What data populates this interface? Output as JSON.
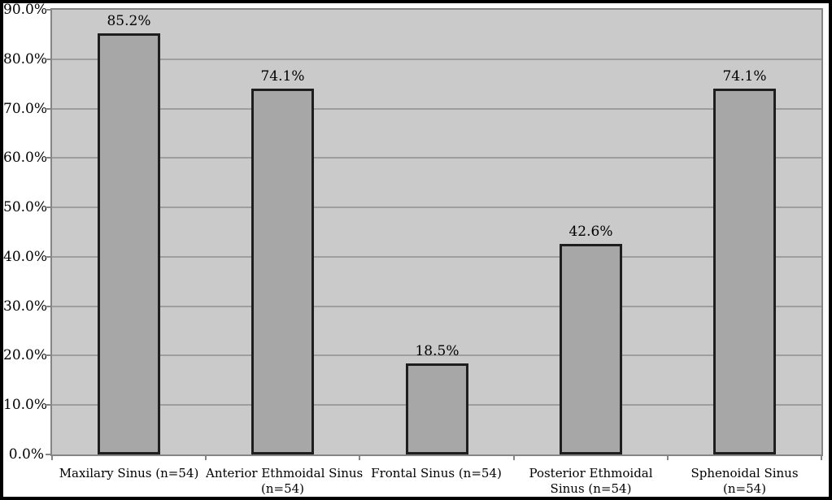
{
  "chart_data": {
    "type": "bar",
    "title": "",
    "xlabel": "",
    "ylabel": "",
    "categories": [
      "Maxilary Sinus (n=54)",
      "Anterior Ethmoidal Sinus (n=54)",
      "Frontal Sinus (n=54)",
      "Posterior Ethmoidal Sinus (n=54)",
      "Sphenoidal Sinus (n=54)"
    ],
    "categories_lines": [
      [
        "Maxilary Sinus (n=54)"
      ],
      [
        "Anterior Ethmoidal Sinus",
        "(n=54)"
      ],
      [
        "Frontal Sinus (n=54)"
      ],
      [
        "Posterior Ethmoidal",
        "Sinus (n=54)"
      ],
      [
        "Sphenoidal Sinus",
        "(n=54)"
      ]
    ],
    "values": [
      85.2,
      74.1,
      18.5,
      42.6,
      74.1
    ],
    "data_labels": [
      "85.2%",
      "74.1%",
      "18.5%",
      "42.6%",
      "74.1%"
    ],
    "ylim": [
      0,
      90
    ],
    "y_tick_values": [
      90,
      80,
      70,
      60,
      50,
      40,
      30,
      20,
      10,
      0
    ],
    "y_tick_labels": [
      "90.0%",
      "80.0%",
      "70.0%",
      "60.0%",
      "50.0%",
      "40.0%",
      "30.0%",
      "20.0%",
      "10.0%",
      "0.0%"
    ],
    "grid": true,
    "legend": "none"
  },
  "colors": {
    "page_bg": "#ffffff",
    "outer_border": "#000000",
    "plot_bg": "#cacaca",
    "plot_border": "#858585",
    "gridline": "#9e9e9e",
    "bar_fill": "#a7a7a7",
    "bar_border": "#1e1e1e",
    "tick": "#858585",
    "text": "#000000"
  }
}
